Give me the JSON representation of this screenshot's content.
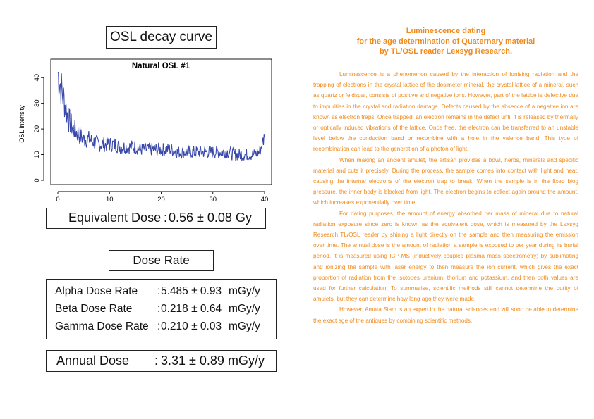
{
  "chart_header": {
    "label": "OSL decay curve"
  },
  "chart_data": {
    "type": "line",
    "title": "Natural OSL #1",
    "ylabel": "OSL intensity",
    "xlabel": "",
    "xlim": [
      0,
      40
    ],
    "ylim": [
      0,
      45
    ],
    "x_ticks": [
      0,
      10,
      20,
      30,
      40
    ],
    "y_ticks": [
      0,
      10,
      20,
      30,
      40
    ],
    "line_color": "#3949ab",
    "grid": false,
    "series": [
      {
        "x": [
          0,
          1,
          2,
          3,
          4,
          5,
          6,
          7,
          8,
          9,
          10,
          11,
          12,
          13,
          14,
          15,
          16,
          17,
          18,
          19,
          20,
          21,
          22,
          23,
          24,
          25,
          26,
          27,
          28,
          29,
          30,
          31,
          32,
          33,
          34,
          35,
          36,
          37,
          38,
          39,
          40
        ],
        "values": [
          42,
          33,
          24,
          20,
          18,
          16,
          16,
          15,
          14,
          14,
          14,
          14,
          13,
          13,
          13,
          13,
          12,
          12,
          12,
          12,
          12,
          12,
          12,
          11,
          11,
          11,
          11,
          11,
          11,
          11,
          11,
          11,
          11,
          11,
          10,
          10,
          10,
          10,
          10,
          11,
          17
        ]
      }
    ]
  },
  "equivalent_dose": {
    "label": "Equivalent Dose",
    "sep": ":",
    "value": "0.56 ± 0.08 Gy"
  },
  "dose_rate_header": {
    "label": "Dose Rate"
  },
  "dose_rates": [
    {
      "label": "Alpha Dose Rate",
      "sep": ":",
      "value": "5.485 ± 0.93",
      "unit": "mGy/y"
    },
    {
      "label": "Beta Dose Rate",
      "sep": ":",
      "value": "0.218 ± 0.64",
      "unit": "mGy/y"
    },
    {
      "label": "Gamma Dose Rate",
      "sep": ":",
      "value": "0.210 ± 0.03",
      "unit": "mGy/y"
    }
  ],
  "annual_dose": {
    "label": "Annual Dose",
    "sep": ":",
    "value": "3.31 ± 0.89",
    "unit": "mGy/y"
  },
  "article": {
    "title_lines": [
      "Luminescence dating",
      "for the age determination of Quaternary material",
      "by TL/OSL reader Lexsyg Research."
    ],
    "paragraphs": [
      "Luminescence is a phenomenon caused by the interaction of ionising radiation and the trapping of electrons in the crystal lattice of the dosimeter mineral. the crystal lattice of a mineral, such as quartz or feldspar, consists of positive and negative ions. However, part of the lattice is defective due to impurities in the crystal and radiation damage. Defects caused by the absence of a negative ion are known as electron traps. Once trapped, an electron remains in the defect until it is released by thermally or optically induced vibrations of the lattice. Once free, the electron can be transferred to an unstable level below the conduction band or recombine with a hole in the valence band. This type of recombination can lead to the generation of a photon of light.",
      "When making an ancient amulet, the artisan provides a bowl, herbs, minerals and specific material and cuts it precisely. During the process, the sample comes into contact with light and heat, causing the internal electrons of the electron trap to break. When the sample is in the fixed blog pressure, the inner body is blocked from light. The electron begins to collect again around the amount, which increases exponentially over time.",
      "For dating purposes, the amount of energy absorbed per mass of mineral due to natural radiation exposure since zero is known as the equivalent dose, which is measured by the Lexsyg Research TL/OSL reader by shining a light directly on the sample and then measuring the emission over time. The annual dose is the amount of radiation a sample is exposed to per year during its burial period. It is measured using ICP-MS (inductively coupled plasma mass spectrometry) by sublimating and ionizing the sample with laser energy to then measure the ion current, which gives the exact proportion of radiation from the isotopes uranium, thorium and potassium, and then both values are used for further calculation. To summarise, scientific methods still cannot determine the purity of amulets, but they can determine how long ago they were made.",
      "However, Amata Siam is an expert in the natural sciences and will soon be able to determine the exact age of the antiques by combining scientific methods."
    ]
  }
}
